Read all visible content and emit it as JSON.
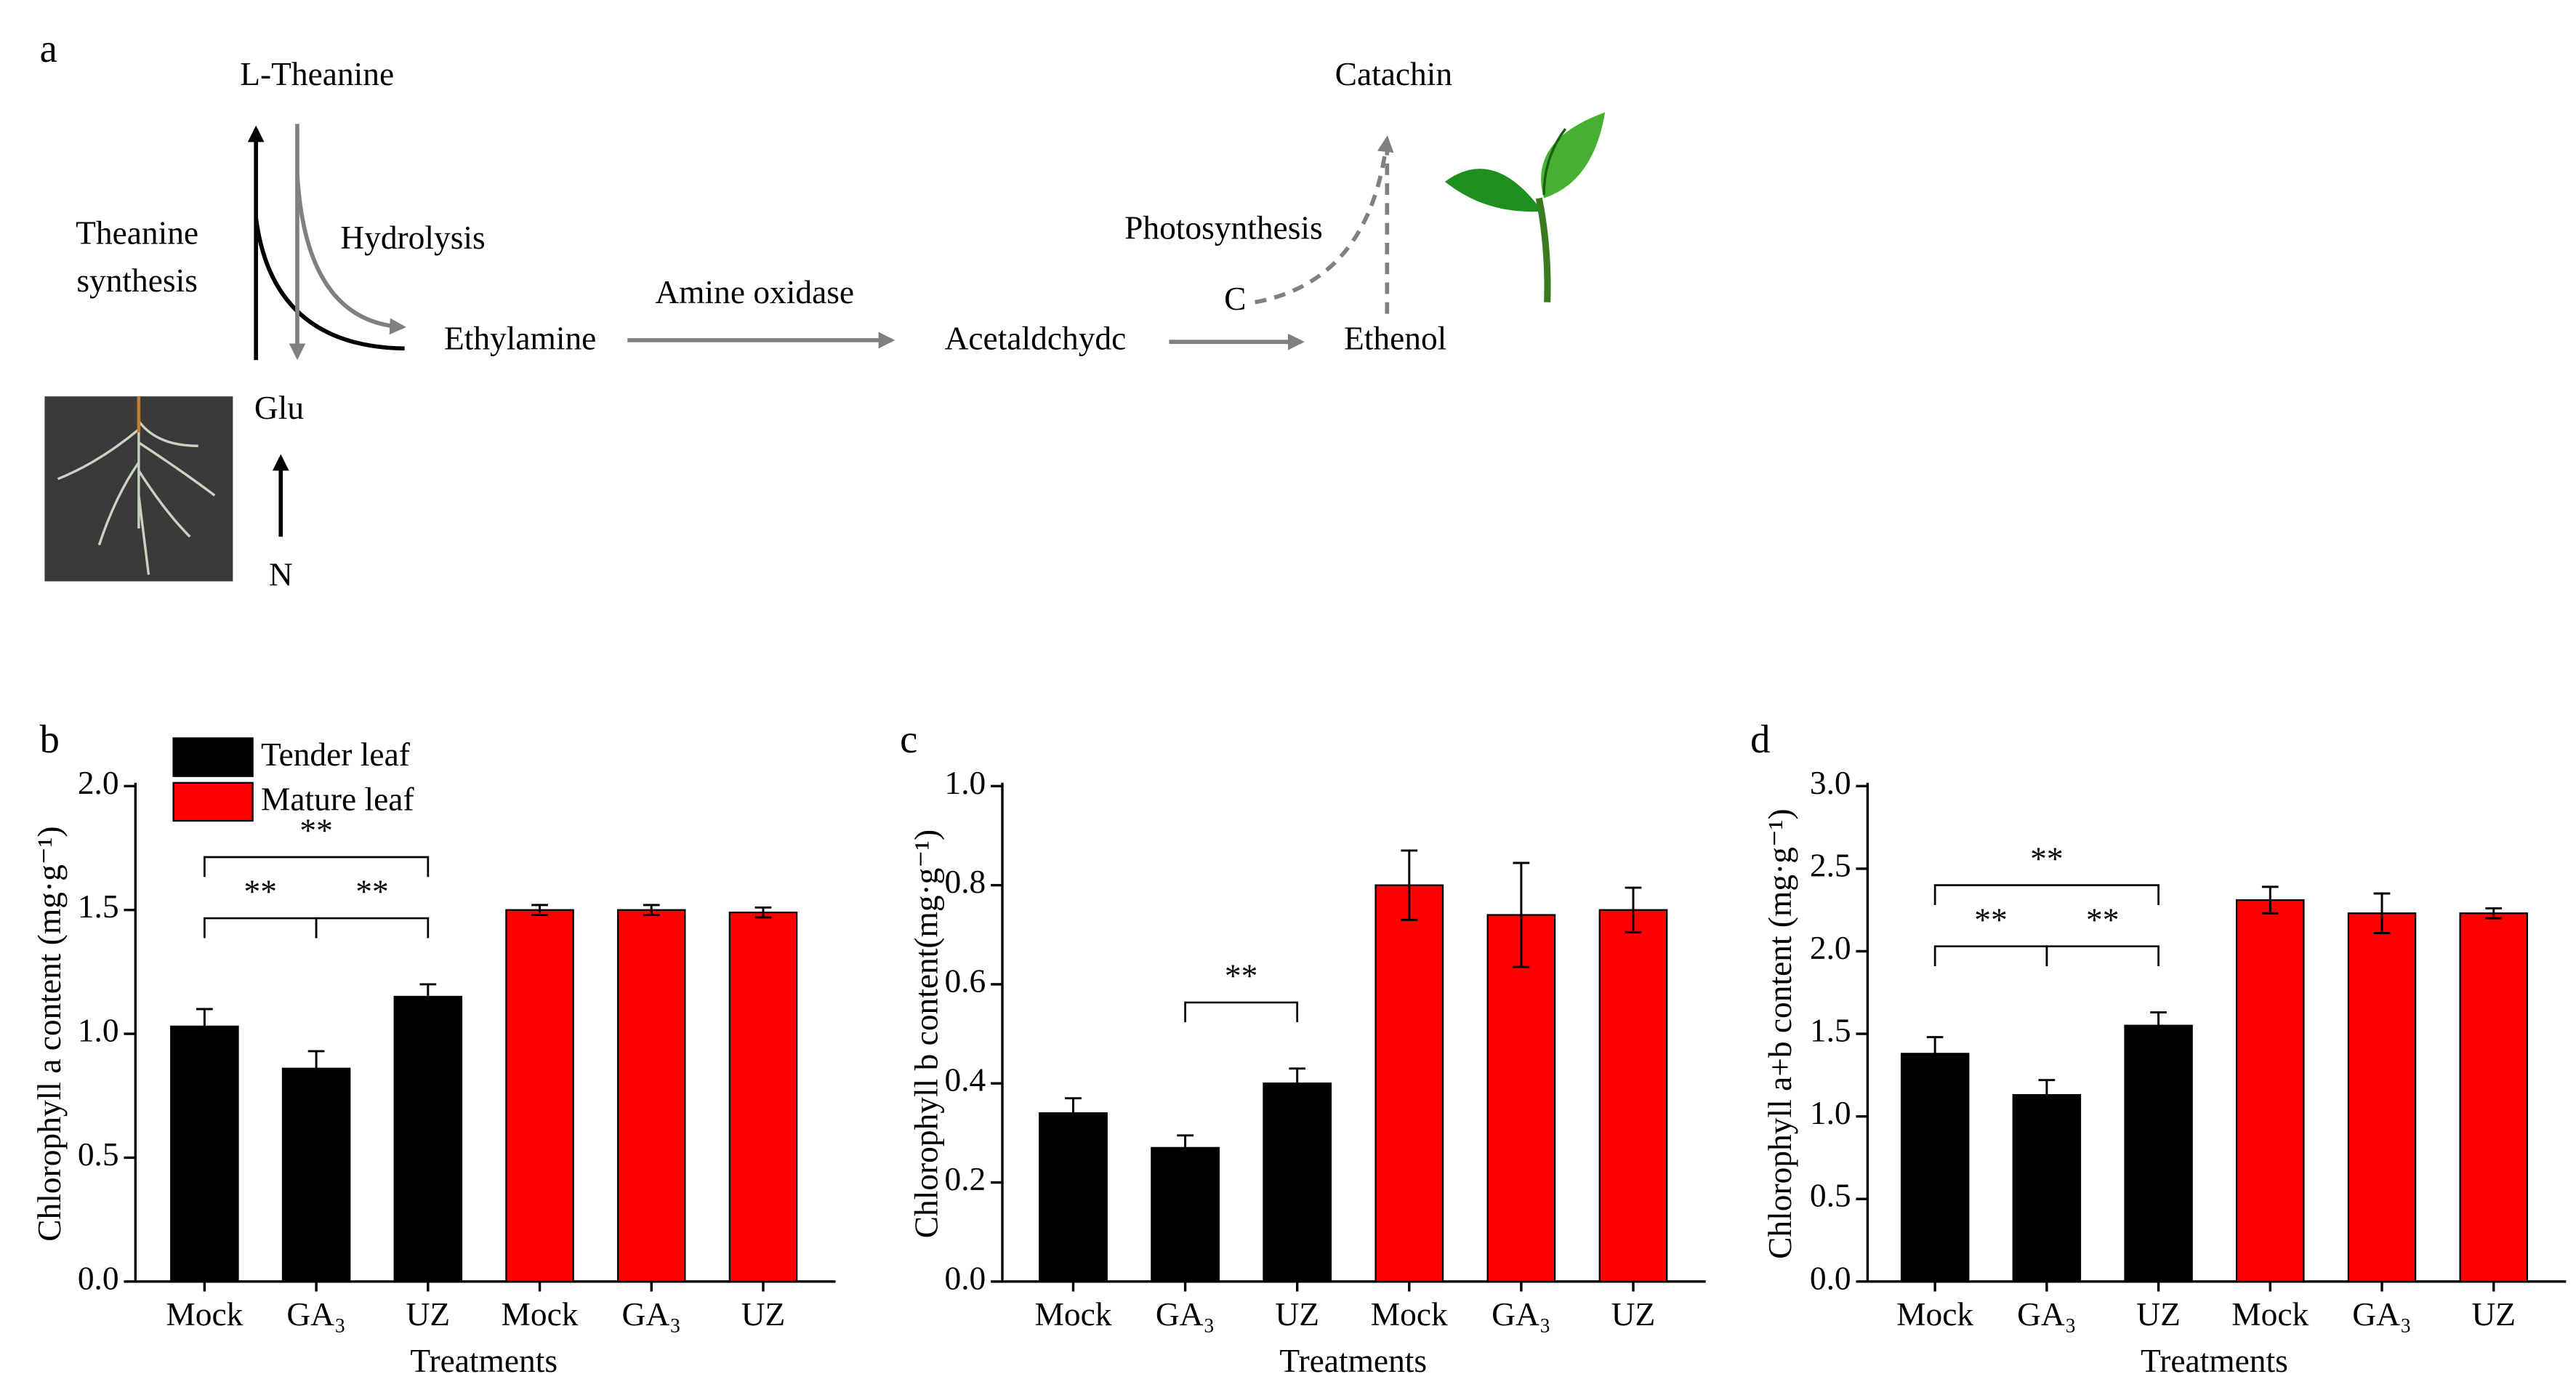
{
  "diagram": {
    "label": "a",
    "l_theanine": "L-Theanine",
    "theanine_synthesis": [
      "Theanine",
      "synthesis"
    ],
    "hydrolysis": "Hydrolysis",
    "ethylamine": "Ethylamine",
    "glu": "Glu",
    "n": "N",
    "amine_oxidase": "Amine oxidase",
    "acetaldchydc": "Acetaldchydc",
    "ethenol": "Ethenol",
    "c": "C",
    "photosynthesis": "Photosynthesis",
    "catachin": "Catachin"
  },
  "chart_data": [
    {
      "type": "bar",
      "label": "b",
      "ylabel": "Chlorophyll a content (mg·g⁻¹)",
      "xlabel": "Treatments",
      "categories": [
        "Mock",
        "GA₃",
        "UZ",
        "Mock",
        "GA₃",
        "UZ"
      ],
      "series": [
        {
          "name": "Tender leaf",
          "color": "#000000",
          "values": [
            1.03,
            0.86,
            1.15,
            null,
            null,
            null
          ],
          "errors": [
            0.07,
            0.07,
            0.05,
            null,
            null,
            null
          ]
        },
        {
          "name": "Mature leaf",
          "color": "#ff0000",
          "values": [
            null,
            null,
            null,
            1.5,
            1.5,
            1.49
          ],
          "errors": [
            null,
            null,
            null,
            0.02,
            0.02,
            0.02
          ]
        }
      ],
      "ylim": [
        0,
        2
      ],
      "yticks": [
        {
          "value": 0,
          "label": "0.0"
        },
        0.5,
        {
          "value": 1,
          "label": "1.0"
        },
        1.5,
        {
          "value": 2,
          "label": "2.0"
        }
      ],
      "legend": "upper left",
      "significance": [
        {
          "pair": [
            0,
            1
          ],
          "label": "**"
        },
        {
          "pair": [
            1,
            2
          ],
          "label": "**"
        },
        {
          "pair": [
            0,
            2
          ],
          "label": "**"
        }
      ]
    },
    {
      "type": "bar",
      "label": "c",
      "ylabel": "Chlorophyll b content(mg·g⁻¹)",
      "xlabel": "Treatments",
      "categories": [
        "Mock",
        "GA₃",
        "UZ",
        "Mock",
        "GA₃",
        "UZ"
      ],
      "series": [
        {
          "color": "#000000",
          "values": [
            0.34,
            0.27,
            0.4,
            null,
            null,
            null
          ],
          "errors": [
            0.03,
            0.025,
            0.03,
            null,
            null,
            null
          ]
        },
        {
          "color": "#ff0000",
          "values": [
            null,
            null,
            null,
            0.8,
            0.74,
            0.75
          ],
          "errors": [
            null,
            null,
            null,
            0.07,
            0.105,
            0.045
          ]
        }
      ],
      "ylim": [
        0,
        1
      ],
      "yticks": [
        {
          "value": 0,
          "label": "0.0"
        },
        0.2,
        0.4,
        0.6,
        0.8,
        {
          "value": 1,
          "label": "1.0"
        }
      ],
      "significance": [
        {
          "pair": [
            1,
            2
          ],
          "label": "**"
        }
      ]
    },
    {
      "type": "bar",
      "label": "d",
      "ylabel": "Chlorophyll a+b content (mg·g⁻¹)",
      "xlabel": "Treatments",
      "categories": [
        "Mock",
        "GA₃",
        "UZ",
        "Mock",
        "GA₃",
        "UZ"
      ],
      "series": [
        {
          "color": "#000000",
          "values": [
            1.38,
            1.13,
            1.55,
            null,
            null,
            null
          ],
          "errors": [
            0.1,
            0.09,
            0.08,
            null,
            null,
            null
          ]
        },
        {
          "color": "#ff0000",
          "values": [
            null,
            null,
            null,
            2.31,
            2.23,
            2.23
          ],
          "errors": [
            null,
            null,
            null,
            0.08,
            0.12,
            0.03
          ]
        }
      ],
      "ylim": [
        0,
        3
      ],
      "yticks": [
        {
          "value": 0,
          "label": "0.0"
        },
        0.5,
        {
          "value": 1,
          "label": "1.0"
        },
        1.5,
        {
          "value": 2,
          "label": "2.0"
        },
        2.5,
        {
          "value": 3,
          "label": "3.0"
        }
      ],
      "significance": [
        {
          "pair": [
            0,
            1
          ],
          "label": "**"
        },
        {
          "pair": [
            1,
            2
          ],
          "label": "**"
        },
        {
          "pair": [
            0,
            2
          ],
          "label": "**"
        }
      ]
    }
  ]
}
